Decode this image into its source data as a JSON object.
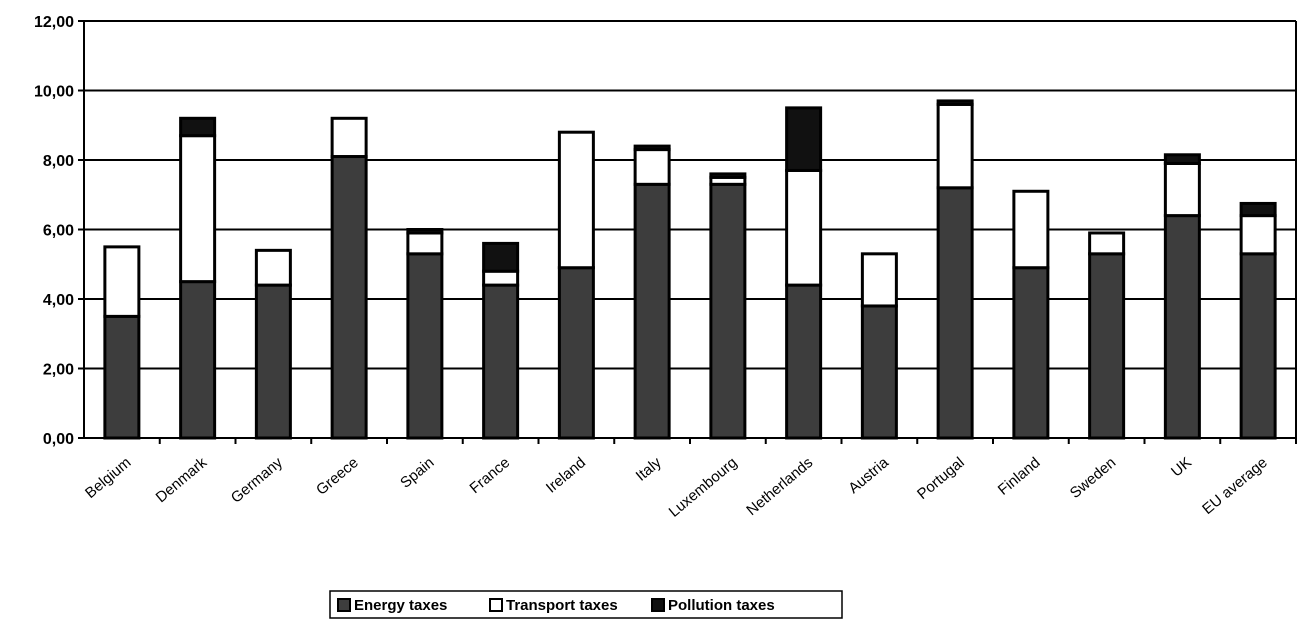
{
  "colors": {
    "energy": "#3d3d3d",
    "transport": "#ffffff",
    "pollution": "#111111",
    "outline": "#000000",
    "grid": "#000000"
  },
  "chart_data": {
    "type": "bar",
    "stacked": true,
    "title": "",
    "xlabel": "",
    "ylabel": "",
    "ylim": [
      0,
      12
    ],
    "y_ticks": [
      "0,00",
      "2,00",
      "4,00",
      "6,00",
      "8,00",
      "10,00",
      "12,00"
    ],
    "grid": true,
    "legend_position": "bottom",
    "categories": [
      "Belgium",
      "Denmark",
      "Germany",
      "Greece",
      "Spain",
      "France",
      "Ireland",
      "Italy",
      "Luxembourg",
      "Netherlands",
      "Austria",
      "Portugal",
      "Finland",
      "Sweden",
      "UK",
      "EU average"
    ],
    "series": [
      {
        "name": "Energy taxes",
        "color_key": "energy",
        "values": [
          3.5,
          4.5,
          4.4,
          8.1,
          5.3,
          4.4,
          4.9,
          7.3,
          7.3,
          4.4,
          3.8,
          7.2,
          4.9,
          5.3,
          6.4,
          5.3
        ]
      },
      {
        "name": "Transport taxes",
        "color_key": "transport",
        "values": [
          2.0,
          4.2,
          1.0,
          1.1,
          0.6,
          0.4,
          3.9,
          1.0,
          0.2,
          3.3,
          1.5,
          2.4,
          2.2,
          0.6,
          1.5,
          1.1
        ]
      },
      {
        "name": "Pollution taxes",
        "color_key": "pollution",
        "values": [
          0.0,
          0.5,
          0.0,
          0.0,
          0.1,
          0.8,
          0.0,
          0.1,
          0.1,
          1.8,
          0.0,
          0.1,
          0.0,
          0.0,
          0.25,
          0.35
        ]
      }
    ]
  }
}
